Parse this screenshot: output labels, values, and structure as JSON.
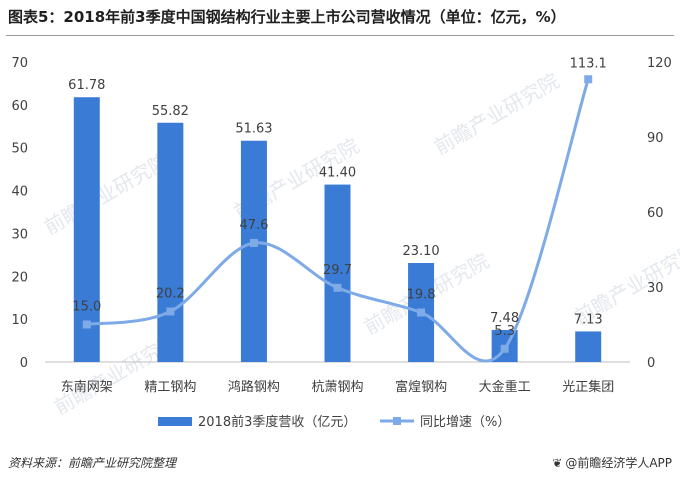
{
  "header": {
    "title": "图表5：2018年前3季度中国钢结构行业主要上市公司营收情况（单位：亿元，%）"
  },
  "footer": {
    "source": "资料来源：前瞻产业研究院整理",
    "brand": "@前瞻经济学人APP",
    "brand_icon": "leaf-icon"
  },
  "watermark": "前瞻产业研究院",
  "colors": {
    "bar": "#3A7BD5",
    "line": "#7FAAE8",
    "axis_text": "#404040",
    "label_text": "#404040"
  },
  "chart_data": {
    "type": "bar",
    "categories": [
      "东南网架",
      "精工钢构",
      "鸿路钢构",
      "杭萧钢构",
      "富煌钢构",
      "大金重工",
      "光正集团"
    ],
    "series": [
      {
        "name": "2018前3季度营收（亿元）",
        "type": "bar",
        "axis": "left",
        "values": [
          61.78,
          55.82,
          51.63,
          41.4,
          23.1,
          7.48,
          7.13
        ],
        "labels": [
          "61.78",
          "55.82",
          "51.63",
          "41.40",
          "23.10",
          "7.48",
          "7.13"
        ]
      },
      {
        "name": "同比增速（%）",
        "type": "line",
        "axis": "right",
        "values": [
          15.0,
          20.2,
          47.6,
          29.7,
          19.8,
          5.3,
          113.1
        ],
        "labels": [
          "15.0",
          "20.2",
          "47.6",
          "29.7",
          "19.8",
          "5.3",
          "113.1"
        ]
      }
    ],
    "ylim_left": [
      0,
      70
    ],
    "yticks_left": [
      "0",
      "10",
      "20",
      "30",
      "40",
      "50",
      "60",
      "70"
    ],
    "ylim_right": [
      0,
      120
    ],
    "yticks_right": [
      "0",
      "30",
      "60",
      "90",
      "120"
    ],
    "grid": false,
    "legend": "bottom"
  }
}
